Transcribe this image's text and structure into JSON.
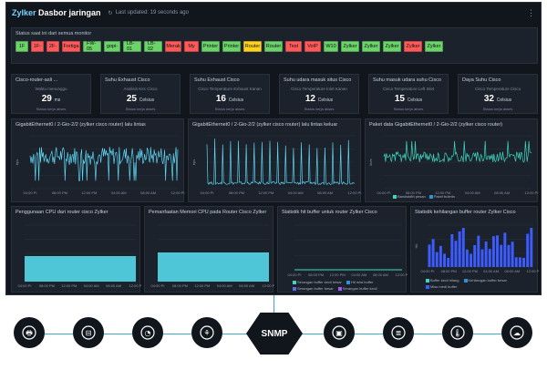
{
  "header": {
    "brand_prefix": "Zylker",
    "brand_rest": " Dasbor jaringan",
    "updated": "Last updated: 19 seconds ago"
  },
  "status": {
    "title": "Status saat ini dari semua monitor",
    "items": [
      {
        "label": "1F",
        "color": "#6cd36a"
      },
      {
        "label": "1F-",
        "color": "#ff5a5a"
      },
      {
        "label": "2F-",
        "color": "#ff5a5a"
      },
      {
        "label": "Fortiga",
        "color": "#ff5a5a"
      },
      {
        "label": "FW-05",
        "color": "#6cd36a"
      },
      {
        "label": "gopi-",
        "color": "#6cd36a"
      },
      {
        "label": "LB-01",
        "color": "#6cd36a"
      },
      {
        "label": "LB-02",
        "color": "#6cd36a"
      },
      {
        "label": "Merak",
        "color": "#ff5a5a"
      },
      {
        "label": "My",
        "color": "#ff5a5a"
      },
      {
        "label": "Printer",
        "color": "#6cd36a"
      },
      {
        "label": "Printer",
        "color": "#6cd36a"
      },
      {
        "label": "Router",
        "color": "#ffd21f"
      },
      {
        "label": "Router",
        "color": "#6cd36a"
      },
      {
        "label": "Test",
        "color": "#ff5a5a"
      },
      {
        "label": "VoIP",
        "color": "#ff5a5a"
      },
      {
        "label": "W10",
        "color": "#6cd36a"
      },
      {
        "label": "Zylker",
        "color": "#6cd36a"
      },
      {
        "label": "Zylker",
        "color": "#6cd36a"
      },
      {
        "label": "Zylker",
        "color": "#6cd36a"
      },
      {
        "label": "Zylker",
        "color": "#ff5a5a"
      },
      {
        "label": "Zylker",
        "color": "#6cd36a"
      }
    ]
  },
  "kpis": [
    {
      "title": "Cisco-router-asli ...",
      "sub": "Waktu menunggu",
      "value": "29",
      "unit": "ms",
      "foot": "Status kerja akses"
    },
    {
      "title": "Suhu Exhaust Cisco",
      "sub": "Analisis Kec Cisco",
      "value": "25",
      "unit": "Celsius",
      "foot": "Status kerja akses"
    },
    {
      "title": "Suhu Exhaust Cisco",
      "sub": "Cisco Temperature Exhaust Kanan",
      "value": "16",
      "unit": "Celsius",
      "foot": "Status kerja akses"
    },
    {
      "title": "Suhu udara masuk situs Cisco",
      "sub": "Cisco Temperature Inlet Kanan",
      "value": "12",
      "unit": "Celsius",
      "foot": "Status kerja akses"
    },
    {
      "title": "Suhu masuk udara suhu Cisco",
      "sub": "Cisco Temperature Left Inlet",
      "value": "15",
      "unit": "Celsius",
      "foot": "Status kerja akses"
    },
    {
      "title": "Daya Suhu Cisco",
      "sub": "Cisco Temperature Cisco",
      "value": "32",
      "unit": "Celsius",
      "foot": "Status kerja akses"
    }
  ],
  "traffic": [
    {
      "title": "GigabitEthernet0 / 2-Gio-2/2 (zylker cisco router) lalu lintas",
      "ylabel": "bps",
      "x": [
        "04:00 PI",
        "08:00 PM",
        "12:00 PM",
        "04:00 AM",
        "08:00 AM",
        "12:00 PI"
      ],
      "legend": []
    },
    {
      "title": "GigabitEthernet0 / 2-Gio-2/2 (zylker cisco router) lalu lintas keluar",
      "ylabel": "bps",
      "x": [
        "04:00 PI",
        "08:00 PM",
        "12:00 PM",
        "04:00 AM",
        "08:00 AM",
        "12:00 PI"
      ],
      "legend": []
    },
    {
      "title": "Paket data GigabitEthernet0 / 2-Gio-2/2 (zylker cisco router)",
      "ylabel": "kb/s",
      "x": [
        "04:00 PI",
        "08:00 PM",
        "12:00 PM",
        "04:00 AM",
        "08:00 AM",
        "12:00 PI"
      ],
      "legend": [
        "Bandwidth pesan",
        "Paket buletin"
      ]
    }
  ],
  "cpu": {
    "title": "Penggunaan CPU dari router cisco Zylker",
    "x": [
      "04:00 PI",
      "08:00 PM",
      "12:00 PM",
      "04:00 AM",
      "08:00 AM",
      "12:00 PI"
    ]
  },
  "mem": {
    "title": "Pemanfaatan Memori CPU pada Router Cisco Zylker",
    "x": [
      "04:00 PI",
      "08:00 PM",
      "12:00 PM",
      "04:00 AM",
      "08:00 AM",
      "12:00 PI"
    ]
  },
  "buffer": {
    "title": "Statistik hit buffer untuk router Zylker Cisco",
    "x": [
      "04:00 PI",
      "08:00 PM",
      "12:00 PM",
      "04:00 AM",
      "08:00 AM",
      "12:00 PI"
    ],
    "legend": [
      "Serangan buffer kecil besar",
      "Hit mist buffer",
      "Serangan buffer besar",
      "Serangan buffer kecil"
    ]
  },
  "bufmiss": {
    "title": "Statistik kehilangan buffer router Zylker Cisco",
    "ylabel": "Hit",
    "x": [
      "04:00 PI",
      "08:00 PM",
      "12:00 PM",
      "04:00 AM",
      "08:00 AM",
      "12:00 PI"
    ],
    "legend": [
      "Buffer kecil hilang",
      "Kehilangan buffer besar",
      "Miss medi buffer"
    ]
  },
  "bottom": {
    "center": "SNMP",
    "icons": [
      "printer-icon",
      "router-icon",
      "camera-icon",
      "network-icon",
      "chip-icon",
      "database-icon",
      "thermometer-icon",
      "cloud-download-icon"
    ]
  }
}
